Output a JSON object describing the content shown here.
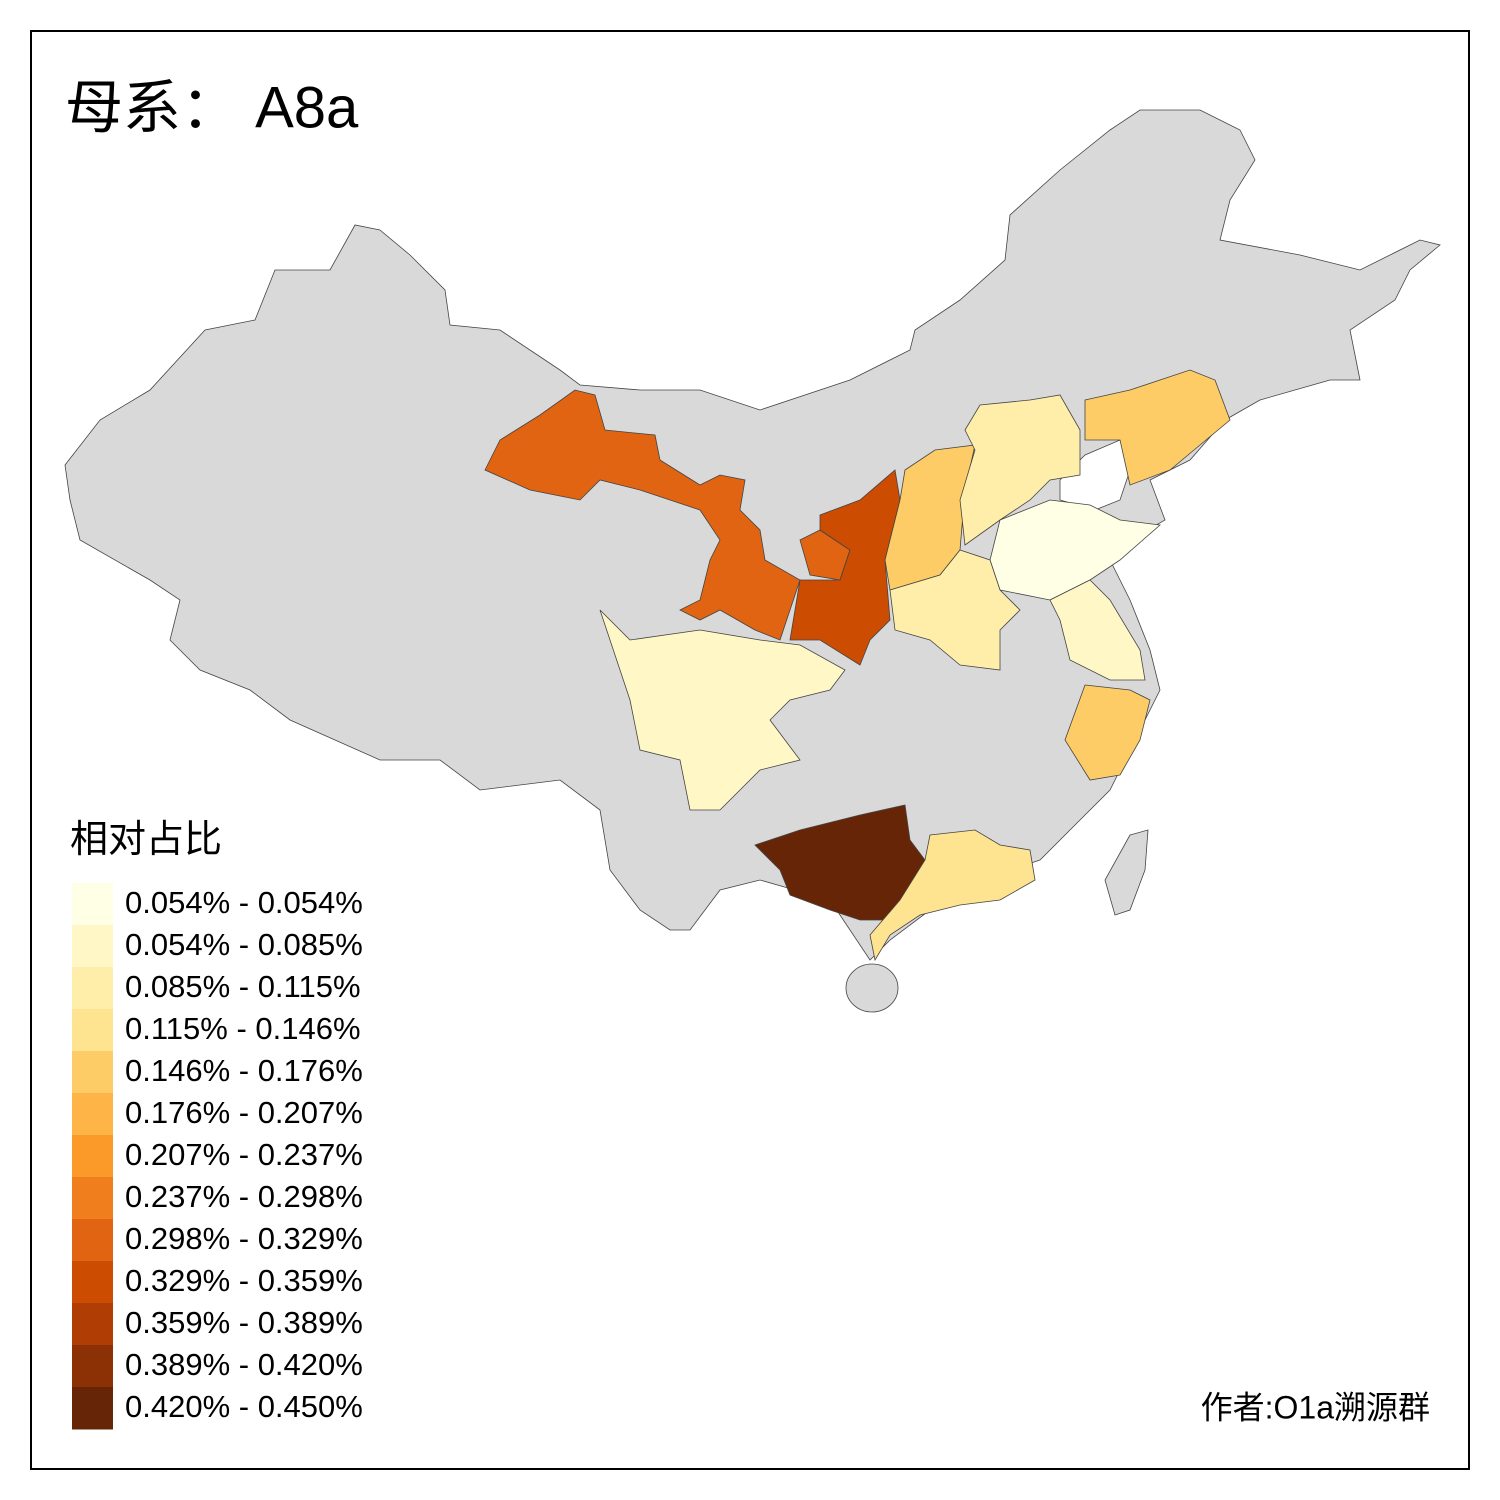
{
  "title": "母系： A8a",
  "legend": {
    "title": "相对占比",
    "entries": [
      {
        "label": "0.054% - 0.054%",
        "color": "#ffffe5"
      },
      {
        "label": "0.054% - 0.085%",
        "color": "#fff8c6"
      },
      {
        "label": "0.085% - 0.115%",
        "color": "#feeeaa"
      },
      {
        "label": "0.115% - 0.146%",
        "color": "#fee391"
      },
      {
        "label": "0.146% - 0.176%",
        "color": "#fecc66"
      },
      {
        "label": "0.176% - 0.207%",
        "color": "#feb446"
      },
      {
        "label": "0.207% - 0.237%",
        "color": "#fb9a29"
      },
      {
        "label": "0.237% - 0.298%",
        "color": "#f07e1c"
      },
      {
        "label": "0.298% - 0.329%",
        "color": "#e06412"
      },
      {
        "label": "0.329% - 0.359%",
        "color": "#cc4c02"
      },
      {
        "label": "0.359% - 0.389%",
        "color": "#b03d04"
      },
      {
        "label": "0.389% - 0.420%",
        "color": "#8c3005"
      },
      {
        "label": "0.420% - 0.450%",
        "color": "#662506"
      }
    ]
  },
  "credit": "作者:O1a溯源群"
}
